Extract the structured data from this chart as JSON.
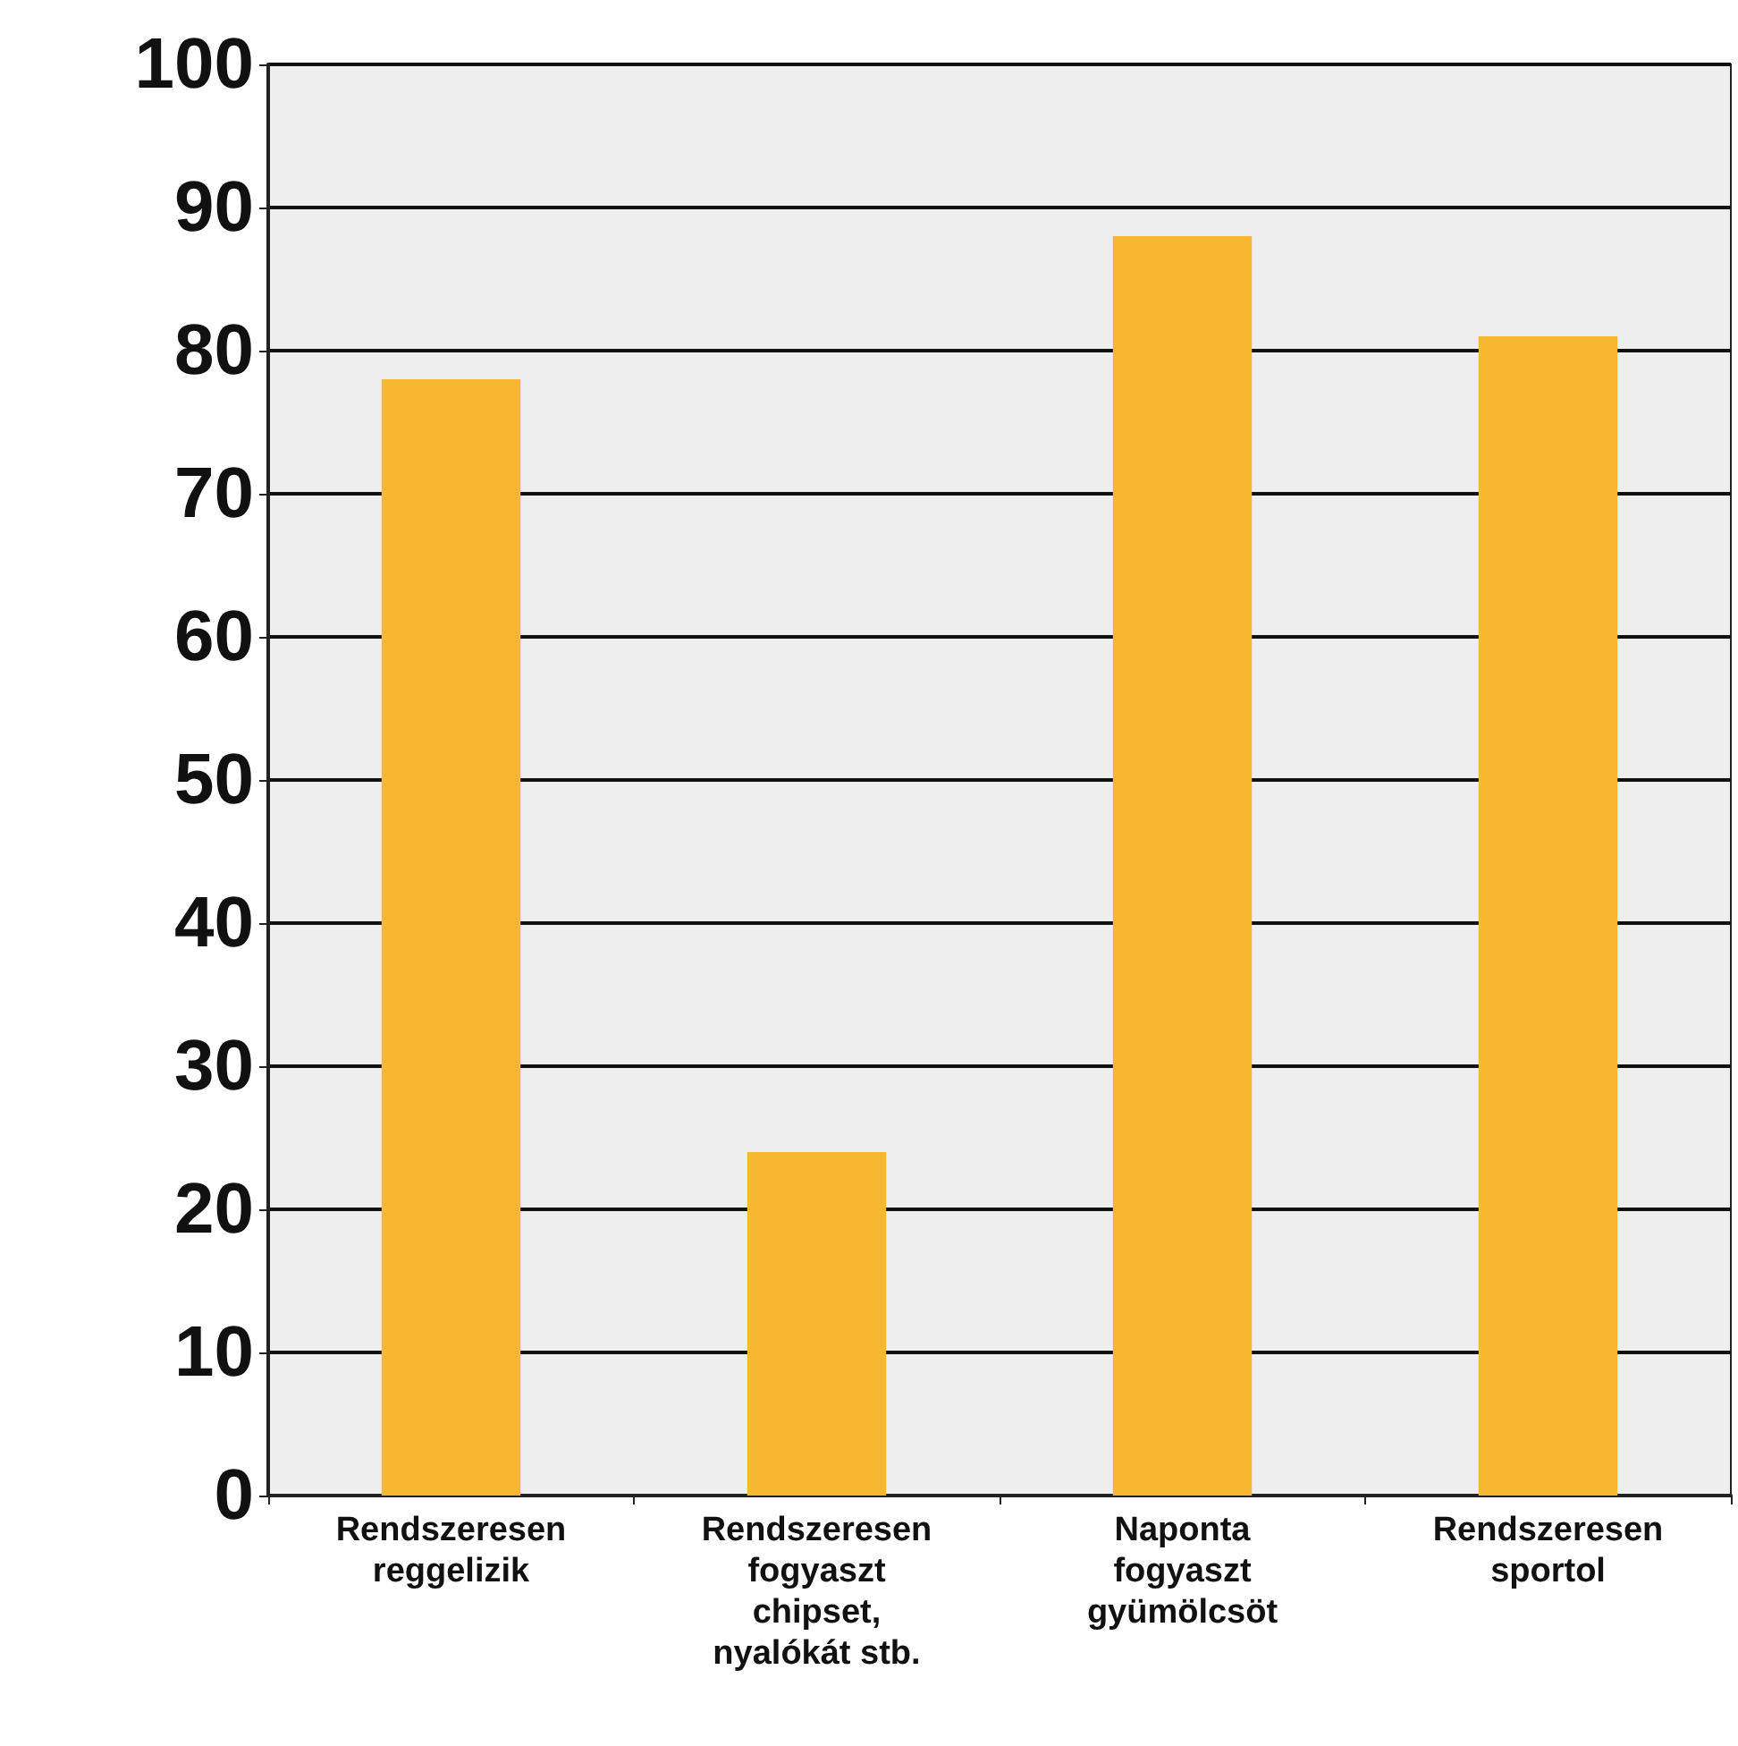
{
  "chart_data": {
    "type": "bar",
    "categories": [
      "Rendszeresen\nreggelizik",
      "Rendszeresen\nfogyaszt\nchipset,\nnyalókát stb.",
      "Naponta\nfogyaszt\ngyümölcsöt",
      "Rendszeresen\nsportol"
    ],
    "values": [
      78,
      24,
      88,
      81
    ],
    "color": "#f5b82e",
    "ylim": [
      0,
      100
    ],
    "yticks": [
      0,
      10,
      20,
      30,
      40,
      50,
      60,
      70,
      80,
      90,
      100
    ],
    "grid": "y"
  }
}
